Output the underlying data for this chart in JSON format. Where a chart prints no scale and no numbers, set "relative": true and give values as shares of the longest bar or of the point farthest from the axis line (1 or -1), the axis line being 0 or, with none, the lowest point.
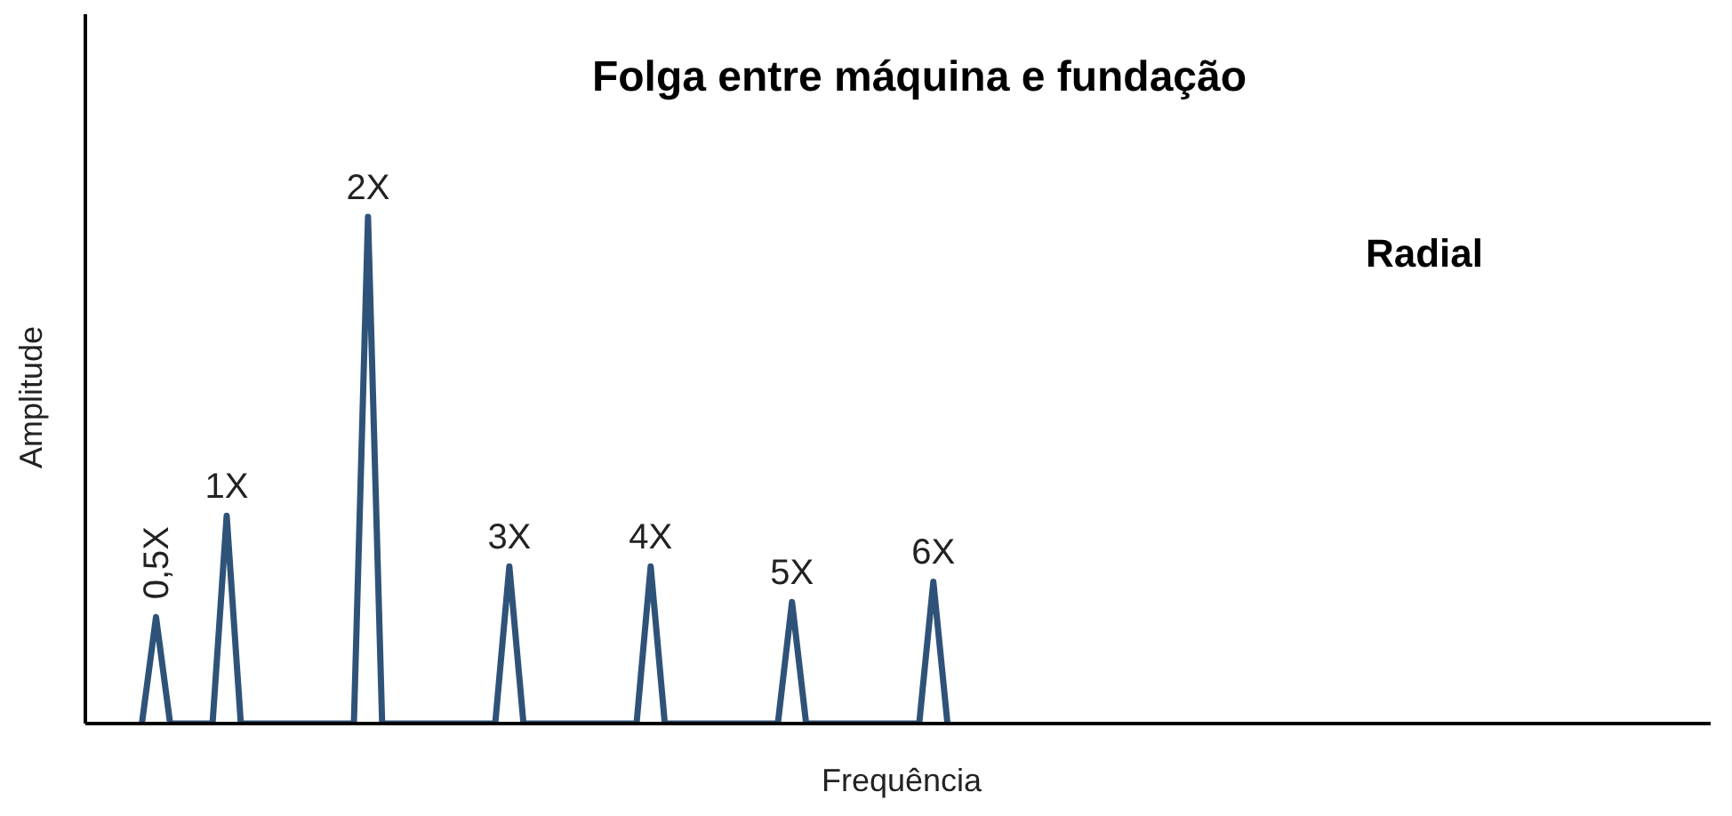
{
  "chart_data": {
    "type": "line",
    "title": "Folga entre máquina e fundação",
    "xlabel": "Frequência",
    "ylabel": "Amplitude",
    "relative": true,
    "marker": "none",
    "line_style": "solid",
    "categories": [
      null,
      null,
      null,
      null,
      null,
      null,
      null,
      null,
      null,
      null,
      null,
      null,
      null,
      null,
      null,
      null,
      null,
      null,
      null,
      null,
      null,
      null,
      null,
      null,
      null,
      null,
      null,
      null,
      null,
      null,
      null,
      null,
      null,
      null,
      null,
      null,
      null,
      null,
      null,
      null,
      null,
      null,
      null,
      null,
      null,
      null,
      null,
      null,
      null,
      null,
      null,
      null,
      null,
      null,
      null,
      null,
      null,
      null,
      null,
      null,
      null,
      null,
      null,
      null,
      null,
      null,
      null,
      null,
      null,
      null,
      null,
      null,
      null,
      null,
      null,
      null,
      null,
      null,
      null,
      null,
      null,
      null,
      null,
      null,
      null,
      null,
      null,
      null,
      null,
      null,
      null,
      null,
      null,
      null,
      null,
      null,
      null,
      null,
      null,
      null,
      null,
      null,
      null,
      null,
      null,
      null,
      null,
      null,
      null,
      null,
      null,
      null,
      null,
      null,
      null,
      null
    ],
    "series": [
      {
        "color": "#2f5378",
        "values": [
          null,
          null,
          null,
          null,
          0,
          0.21,
          0,
          0,
          0,
          0,
          0.41,
          0,
          0,
          0,
          0,
          0,
          0,
          0,
          0,
          0,
          1,
          0,
          0,
          0,
          0,
          0,
          0,
          0,
          0,
          0,
          0.31,
          0,
          0,
          0,
          0,
          0,
          0,
          0,
          0,
          0,
          0.31,
          0,
          0,
          0,
          0,
          0,
          0,
          0,
          0,
          0,
          0.24,
          0,
          0,
          0,
          0,
          0,
          0,
          0,
          0,
          0,
          0.28,
          0,
          null,
          null,
          null,
          null,
          null,
          null,
          null,
          null,
          null,
          null,
          null,
          null,
          null,
          null,
          null,
          null,
          null,
          null,
          null,
          null,
          null,
          null,
          null,
          null,
          null,
          null,
          null,
          null,
          null,
          null,
          null,
          null,
          null,
          null,
          null,
          null,
          null,
          null,
          null,
          null,
          null,
          null,
          null,
          null,
          null,
          null,
          null,
          null,
          null,
          null,
          null,
          null,
          null,
          null
        ]
      }
    ],
    "annotations": [
      {
        "text": "0,5X",
        "y": 0.21
      },
      {
        "text": "1X",
        "y": 0.41
      },
      {
        "text": "2X",
        "y": 1
      },
      {
        "text": "3X",
        "y": 0.31
      },
      {
        "text": "4X",
        "y": 0.31
      },
      {
        "text": "5X",
        "y": 0.24
      },
      {
        "text": "6X",
        "y": 0.28
      },
      "Radial"
    ]
  }
}
